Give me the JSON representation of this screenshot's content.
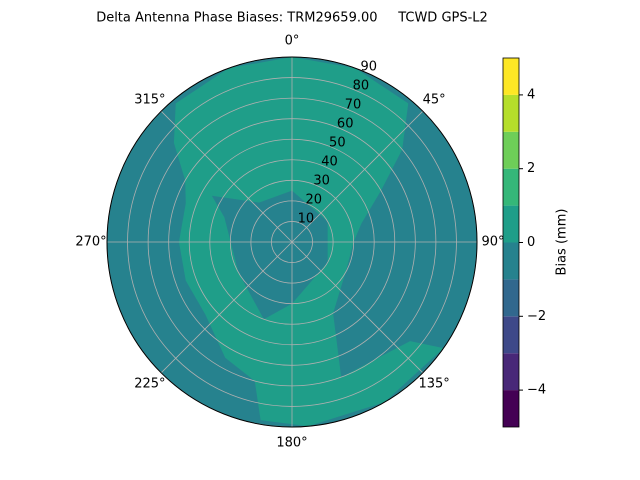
{
  "chart_data": {
    "type": "polar-contour",
    "title": "Delta Antenna Phase Biases: TRM29659.00     TCWD GPS-L2",
    "rlim": [
      0,
      90
    ],
    "rticks": [
      10,
      20,
      30,
      40,
      50,
      60,
      70,
      80,
      90
    ],
    "thetaticks": [
      {
        "value": 0,
        "label": "0°"
      },
      {
        "value": 45,
        "label": "45°"
      },
      {
        "value": 90,
        "label": "90°"
      },
      {
        "value": 135,
        "label": "135°"
      },
      {
        "value": 180,
        "label": "180°"
      },
      {
        "value": 225,
        "label": "225°"
      },
      {
        "value": 270,
        "label": "270°"
      },
      {
        "value": 315,
        "label": "315°"
      }
    ],
    "grid": true,
    "background": {
      "low": -1,
      "high": 0
    },
    "regions": [
      {
        "low": 0,
        "high": 1,
        "polygon": [
          [
            0,
            90
          ],
          [
            20,
            90
          ],
          [
            40,
            88
          ],
          [
            50,
            70
          ],
          [
            60,
            50
          ],
          [
            75,
            35
          ],
          [
            90,
            30
          ],
          [
            120,
            30
          ],
          [
            150,
            40
          ],
          [
            160,
            70
          ],
          [
            130,
            75
          ],
          [
            125,
            90
          ],
          [
            150,
            90
          ],
          [
            175,
            90
          ],
          [
            190,
            88
          ],
          [
            195,
            70
          ],
          [
            210,
            65
          ],
          [
            230,
            55
          ],
          [
            250,
            55
          ],
          [
            270,
            55
          ],
          [
            290,
            55
          ],
          [
            300,
            60
          ],
          [
            310,
            75
          ],
          [
            320,
            88
          ],
          [
            340,
            90
          ]
        ]
      },
      {
        "low": -1,
        "high": 0,
        "polygon": [
          [
            0,
            25
          ],
          [
            60,
            20
          ],
          [
            120,
            20
          ],
          [
            180,
            30
          ],
          [
            200,
            40
          ],
          [
            240,
            30
          ],
          [
            290,
            35
          ],
          [
            300,
            45
          ],
          [
            320,
            25
          ]
        ]
      }
    ],
    "colorbar": {
      "label": "Bias (mm)",
      "levels": [
        -5,
        -4,
        -3,
        -2,
        -1,
        0,
        1,
        2,
        3,
        4,
        5
      ],
      "colors": [
        "#440154",
        "#482878",
        "#3e4989",
        "#31688e",
        "#26828e",
        "#1f9e89",
        "#35b779",
        "#6ece58",
        "#b5de2b",
        "#fde725"
      ],
      "ylim": [
        -5,
        5
      ],
      "ticks": [
        {
          "value": -4,
          "label": "−4"
        },
        {
          "value": -2,
          "label": "−2"
        },
        0,
        2,
        4
      ]
    }
  }
}
